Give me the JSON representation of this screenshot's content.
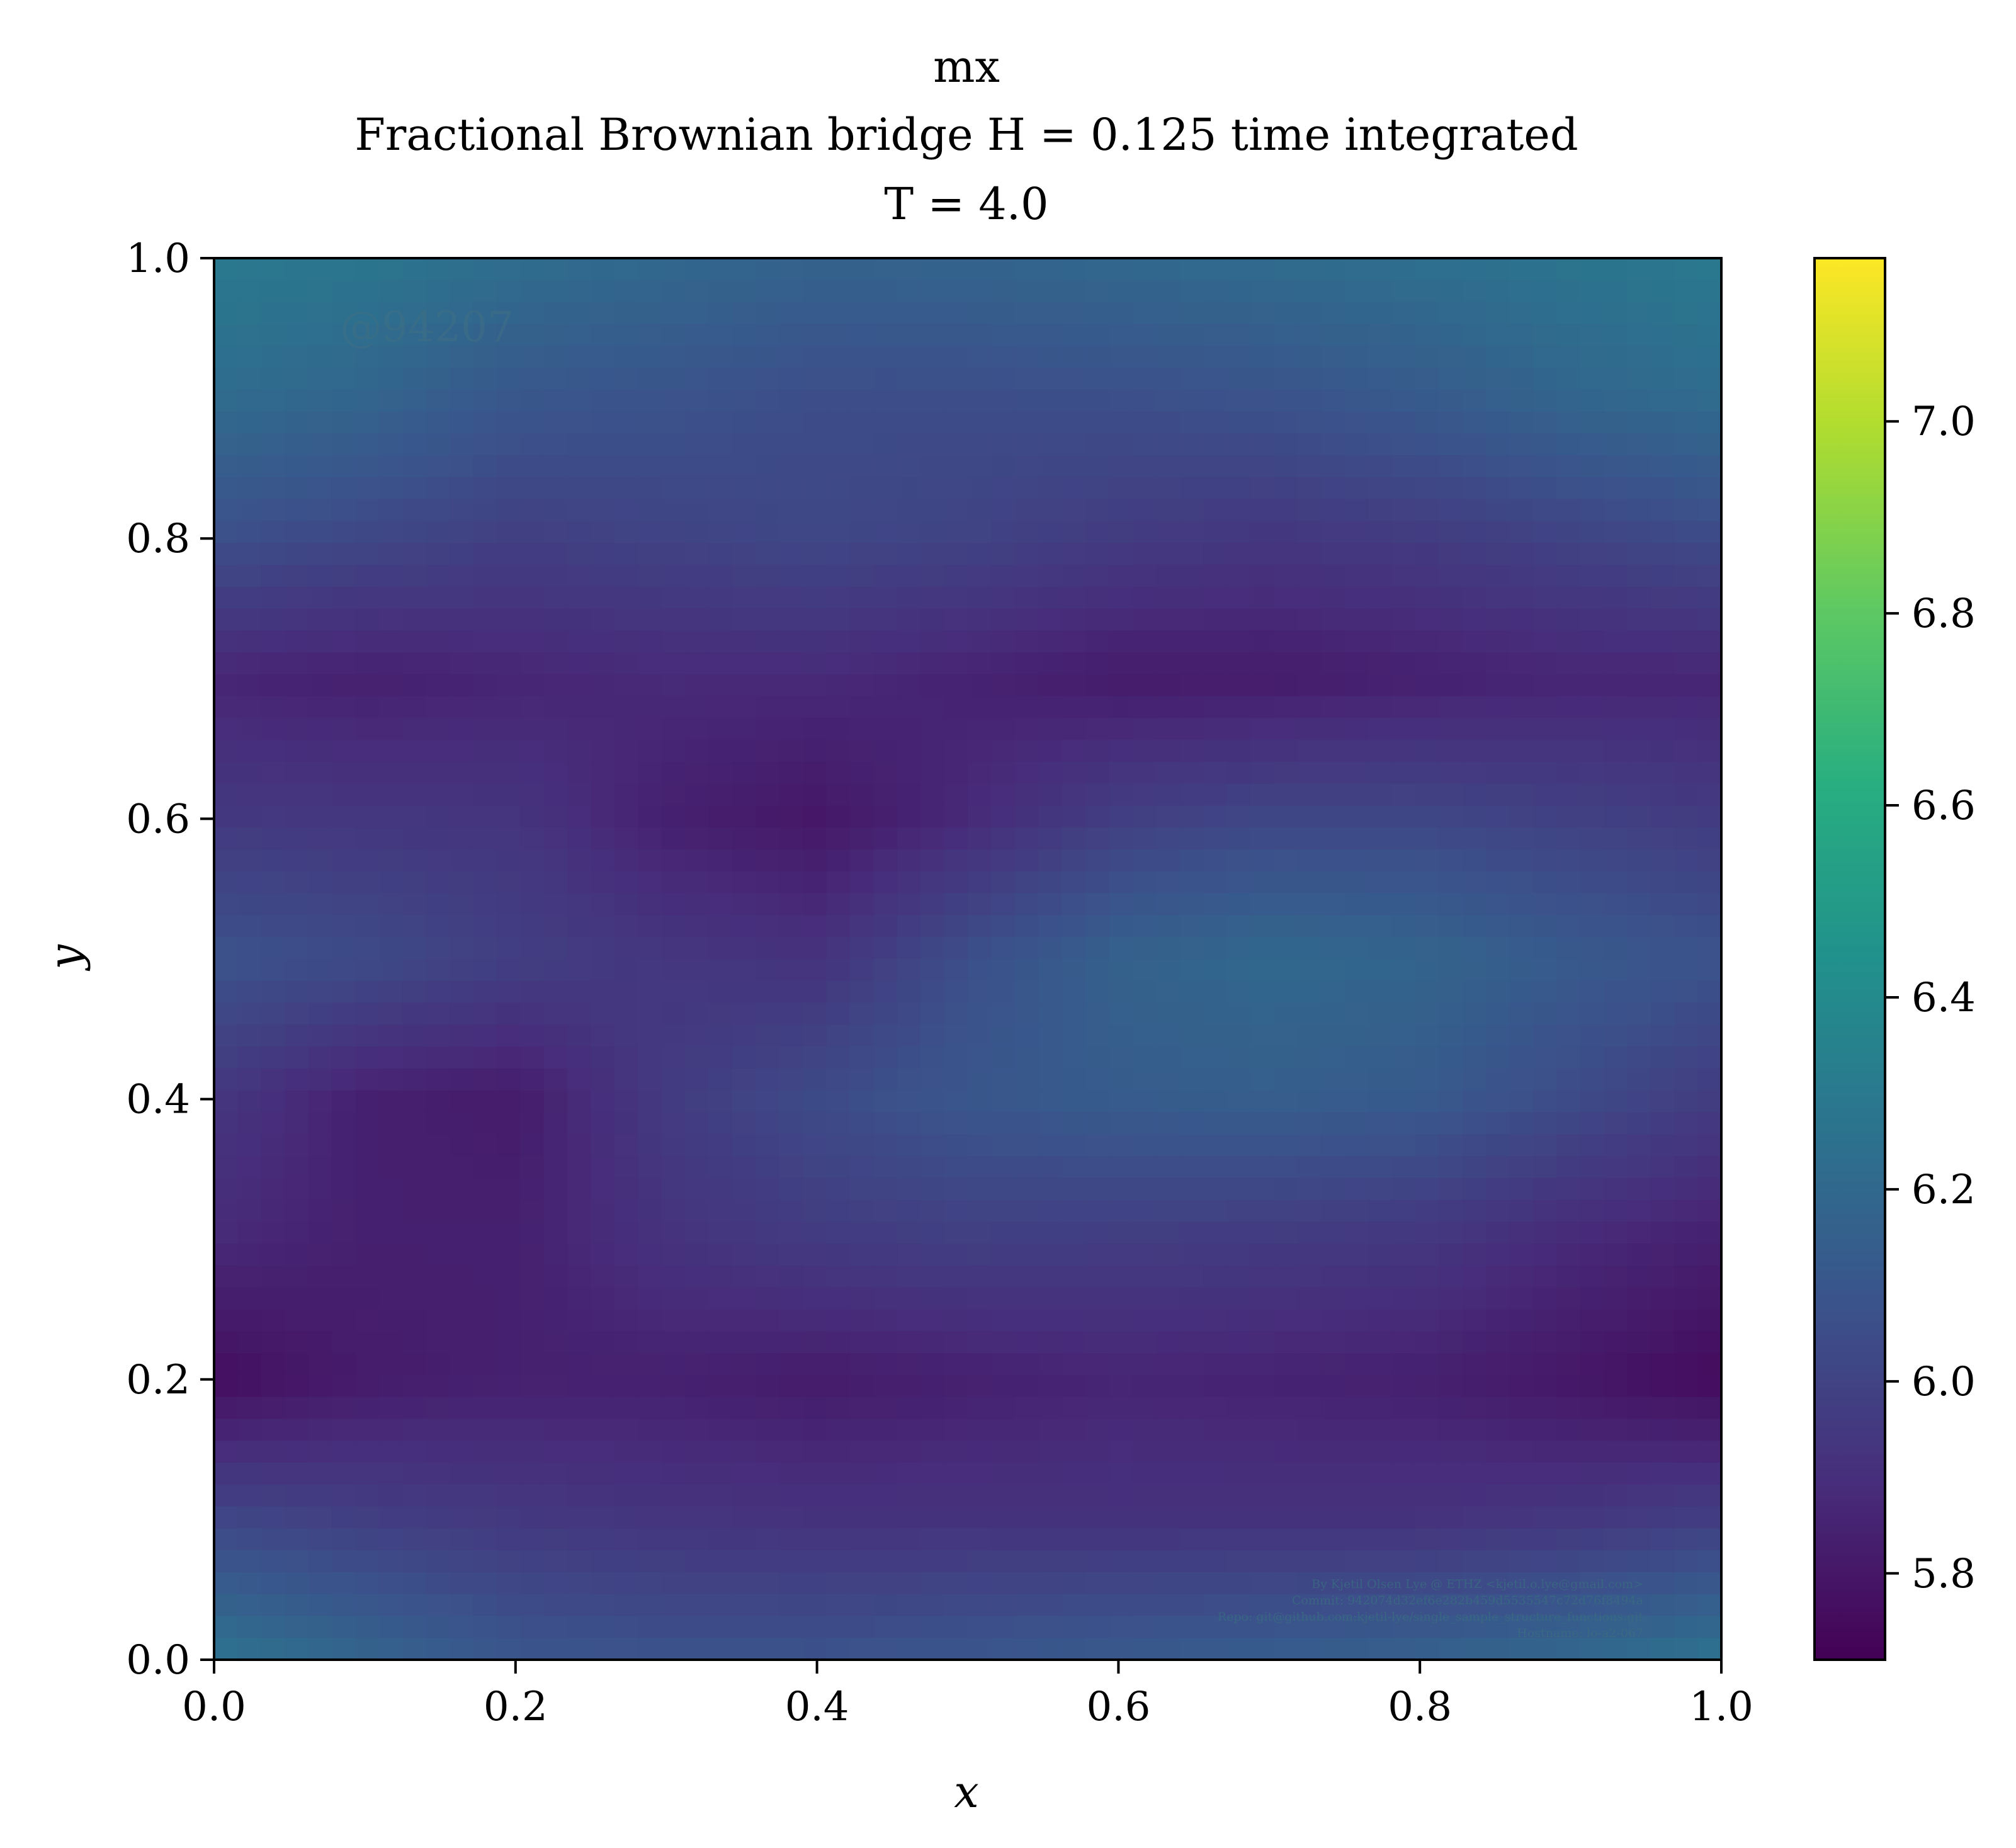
{
  "chart_data": {
    "type": "heatmap",
    "title": "mx",
    "subtitle": "Fractional Brownian bridge H = 0.125 time integrated",
    "subtitle2": "T = 4.0",
    "xlabel": "x",
    "ylabel": "y",
    "xlim": [
      0.0,
      1.0
    ],
    "ylim": [
      0.0,
      1.0
    ],
    "xticks": [
      "0.0",
      "0.2",
      "0.4",
      "0.6",
      "0.8",
      "1.0"
    ],
    "yticks": [
      "0.0",
      "0.2",
      "0.4",
      "0.6",
      "0.8",
      "1.0"
    ],
    "colorbar": {
      "colormap": "viridis",
      "range": [
        5.71,
        7.17
      ],
      "ticks": [
        "5.8",
        "6.0",
        "6.2",
        "6.4",
        "6.6",
        "6.8",
        "7.0"
      ]
    },
    "grid": false,
    "x": [
      0.0,
      0.1,
      0.2,
      0.3,
      0.4,
      0.5,
      0.6,
      0.7,
      0.8,
      0.9,
      1.0
    ],
    "y": [
      1.0,
      0.9,
      0.8,
      0.7,
      0.6,
      0.5,
      0.4,
      0.3,
      0.2,
      0.1,
      0.0
    ],
    "z": [
      [
        6.3,
        6.28,
        6.23,
        6.2,
        6.17,
        6.18,
        6.2,
        6.22,
        6.24,
        6.27,
        6.3
      ],
      [
        6.22,
        6.18,
        6.1,
        6.08,
        6.05,
        6.05,
        6.06,
        6.08,
        6.12,
        6.18,
        6.22
      ],
      [
        6.06,
        6.02,
        5.98,
        6.0,
        6.02,
        6.0,
        5.96,
        5.94,
        5.96,
        6.0,
        6.04
      ],
      [
        5.86,
        5.84,
        5.86,
        5.88,
        5.88,
        5.85,
        5.82,
        5.82,
        5.84,
        5.86,
        5.86
      ],
      [
        5.95,
        5.94,
        5.93,
        5.84,
        5.8,
        5.88,
        5.98,
        6.02,
        6.02,
        5.99,
        5.96
      ],
      [
        6.08,
        6.04,
        5.98,
        5.94,
        5.92,
        6.06,
        6.16,
        6.2,
        6.18,
        6.12,
        6.08
      ],
      [
        5.94,
        5.84,
        5.82,
        5.96,
        6.04,
        6.1,
        6.13,
        6.14,
        6.12,
        6.04,
        5.96
      ],
      [
        5.88,
        5.84,
        5.84,
        5.92,
        5.96,
        5.98,
        5.97,
        5.96,
        5.94,
        5.88,
        5.84
      ],
      [
        5.76,
        5.82,
        5.84,
        5.84,
        5.82,
        5.84,
        5.86,
        5.85,
        5.84,
        5.8,
        5.75
      ],
      [
        6.02,
        5.98,
        5.95,
        5.93,
        5.92,
        5.92,
        5.92,
        5.92,
        5.92,
        5.94,
        5.98
      ],
      [
        6.26,
        6.18,
        6.1,
        6.08,
        6.08,
        6.1,
        6.12,
        6.14,
        6.16,
        6.2,
        6.26
      ]
    ]
  },
  "watermark": "@94207",
  "footer_lines": [
    "By Kjetil Olsen Lye @ ETHZ <kjetil.o.lye@gmail.com>",
    "Commit: 942074d32ef6e282b459d5535547c72d76f8494a",
    "Repo: git@github.com:kjetil-lye/single_sample_structure_functions.git",
    "Hostname: lo-a2-067"
  ]
}
